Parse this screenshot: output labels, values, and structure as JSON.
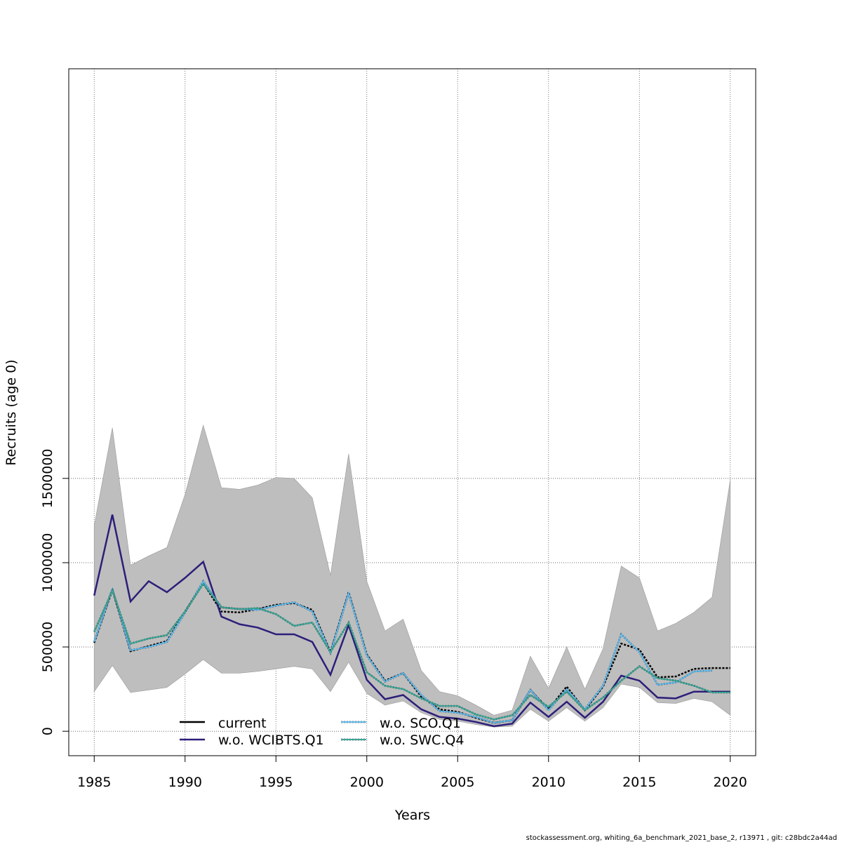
{
  "chart_data": {
    "type": "line",
    "xlabel": "Years",
    "ylabel": "Recruits (age 0)",
    "xlim": [
      1983.6,
      2021.4
    ],
    "ylim": [
      -145000,
      3930000
    ],
    "x_ticks": [
      1985,
      1990,
      1995,
      2000,
      2005,
      2010,
      2015,
      2020
    ],
    "y_ticks": [
      0,
      500000,
      1000000,
      1500000
    ],
    "y_tick_labels": [
      "0",
      "500000",
      "1000000",
      "1500000"
    ],
    "grid": true,
    "legend_position": "bottom-left",
    "colors": {
      "band": "#bebebe",
      "current": "#000000",
      "wcibts": "#2d1e7a",
      "sco": "#5fb8ea",
      "swc": "#3aa596",
      "grid": "#555555"
    },
    "years": [
      1985,
      1986,
      1987,
      1988,
      1989,
      1990,
      1991,
      1992,
      1993,
      1994,
      1995,
      1996,
      1997,
      1998,
      1999,
      2000,
      2001,
      2002,
      2003,
      2004,
      2005,
      2006,
      2007,
      2008,
      2009,
      2010,
      2011,
      2012,
      2013,
      2014,
      2015,
      2016,
      2017,
      2018,
      2019,
      2020
    ],
    "band_upper": [
      1220000,
      1800000,
      985000,
      1040000,
      1090000,
      1405000,
      1815000,
      1445000,
      1435000,
      1460000,
      1505000,
      1500000,
      1385000,
      925000,
      1645000,
      890000,
      595000,
      665000,
      360000,
      235000,
      210000,
      155000,
      95000,
      125000,
      445000,
      255000,
      500000,
      250000,
      490000,
      980000,
      910000,
      595000,
      640000,
      705000,
      795000,
      1490000
    ],
    "band_lower": [
      235000,
      390000,
      230000,
      245000,
      260000,
      340000,
      425000,
      345000,
      345000,
      355000,
      370000,
      385000,
      370000,
      235000,
      410000,
      225000,
      155000,
      180000,
      110000,
      70000,
      60000,
      40000,
      25000,
      30000,
      130000,
      60000,
      140000,
      60000,
      140000,
      280000,
      260000,
      170000,
      165000,
      195000,
      175000,
      95000
    ],
    "series": [
      {
        "name": "current",
        "values": [
          525000,
          840000,
          475000,
          505000,
          535000,
          710000,
          880000,
          710000,
          705000,
          725000,
          750000,
          760000,
          720000,
          470000,
          825000,
          455000,
          300000,
          345000,
          205000,
          130000,
          115000,
          80000,
          50000,
          65000,
          245000,
          130000,
          265000,
          125000,
          265000,
          520000,
          485000,
          320000,
          325000,
          370000,
          375000,
          375000
        ]
      },
      {
        "name": "w.o. WCIBTS.Q1",
        "values": [
          805000,
          1285000,
          770000,
          890000,
          825000,
          910000,
          1005000,
          680000,
          635000,
          615000,
          575000,
          575000,
          530000,
          335000,
          630000,
          305000,
          190000,
          215000,
          130000,
          85000,
          75000,
          55000,
          30000,
          45000,
          170000,
          85000,
          175000,
          80000,
          175000,
          330000,
          300000,
          200000,
          195000,
          235000,
          235000,
          235000
        ]
      },
      {
        "name": "w.o. SCO.Q1",
        "values": [
          530000,
          845000,
          480000,
          500000,
          530000,
          705000,
          890000,
          735000,
          725000,
          720000,
          745000,
          765000,
          710000,
          465000,
          820000,
          450000,
          295000,
          345000,
          215000,
          120000,
          110000,
          85000,
          50000,
          65000,
          245000,
          125000,
          250000,
          130000,
          270000,
          575000,
          470000,
          275000,
          290000,
          355000,
          360000,
          null
        ]
      },
      {
        "name": "w.o. SWC.Q4",
        "values": [
          590000,
          835000,
          520000,
          550000,
          570000,
          710000,
          875000,
          735000,
          725000,
          730000,
          695000,
          625000,
          645000,
          470000,
          645000,
          350000,
          270000,
          250000,
          195000,
          150000,
          150000,
          100000,
          70000,
          95000,
          215000,
          145000,
          235000,
          125000,
          200000,
          300000,
          385000,
          315000,
          300000,
          270000,
          230000,
          230000
        ]
      }
    ]
  },
  "legend": {
    "current": "current",
    "wcibts": "w.o. WCIBTS.Q1",
    "sco": "w.o. SCO.Q1",
    "swc": "w.o. SWC.Q4"
  },
  "credit": "stockassessment.org, whiting_6a_benchmark_2021_base_2, r13971 , git: c28bdc2a44ad"
}
